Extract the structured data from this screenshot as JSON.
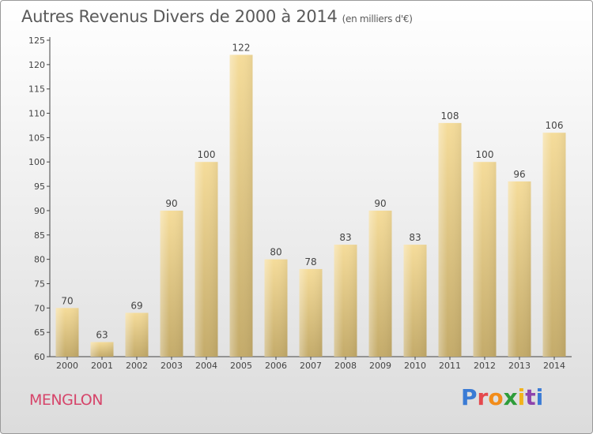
{
  "header": {
    "title": "Autres Revenus Divers de 2000 à 2014",
    "unit": "(en milliers d'€)"
  },
  "footer": {
    "commune": "MENGLON",
    "logo": "Proxiti",
    "logo_colors": [
      "#3a7bd5",
      "#e5484d",
      "#f28c1a",
      "#2e9c3a",
      "#f2b21a",
      "#8e44ad",
      "#3a7bd5"
    ]
  },
  "colors": {
    "bar_light": "#f5dc9a",
    "bar_dark": "#c4ab6a",
    "title": "#5a5a5a",
    "commune": "#d6456a"
  },
  "chart_data": {
    "type": "bar",
    "categories": [
      "2000",
      "2001",
      "2002",
      "2003",
      "2004",
      "2005",
      "2006",
      "2007",
      "2008",
      "2009",
      "2010",
      "2011",
      "2012",
      "2013",
      "2014"
    ],
    "values": [
      70,
      63,
      69,
      90,
      100,
      122,
      80,
      78,
      83,
      90,
      83,
      108,
      100,
      96,
      106
    ],
    "yticks": [
      60,
      65,
      70,
      75,
      80,
      85,
      90,
      95,
      100,
      105,
      110,
      115,
      120,
      125
    ],
    "ylim": [
      60,
      125
    ],
    "grid": false,
    "title": "Autres Revenus Divers de 2000 à 2014",
    "xlabel": "",
    "ylabel": ""
  }
}
